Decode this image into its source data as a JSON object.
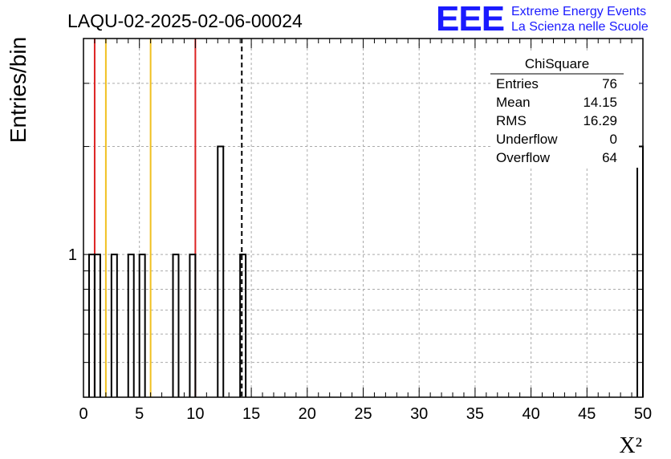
{
  "chart_data": {
    "type": "bar",
    "title": "LAQU-02-2025-02-06-00024",
    "xlabel": "X²",
    "ylabel": "Entries/bin",
    "xlim": [
      0,
      50
    ],
    "ylog": true,
    "ylim": [
      0.4,
      4
    ],
    "x_ticks": [
      "0",
      "5",
      "10",
      "15",
      "20",
      "25",
      "30",
      "35",
      "40",
      "45",
      "50"
    ],
    "y_tick_labels": [
      {
        "value": 1,
        "label": "1"
      }
    ],
    "bin_width": 0.5,
    "bins": [
      {
        "x0": 0.5,
        "count": 1
      },
      {
        "x0": 1.0,
        "count": 1
      },
      {
        "x0": 2.5,
        "count": 1
      },
      {
        "x0": 4.0,
        "count": 1
      },
      {
        "x0": 5.0,
        "count": 1
      },
      {
        "x0": 8.0,
        "count": 1
      },
      {
        "x0": 9.5,
        "count": 1
      },
      {
        "x0": 12.0,
        "count": 2
      },
      {
        "x0": 14.0,
        "count": 1
      },
      {
        "x0": 49.5,
        "count": 2
      }
    ],
    "vertical_lines": [
      {
        "x": 1.0,
        "color": "#dd2222",
        "style": "solid"
      },
      {
        "x": 2.0,
        "color": "#f0c020",
        "style": "solid"
      },
      {
        "x": 6.0,
        "color": "#f0c020",
        "style": "solid"
      },
      {
        "x": 10.0,
        "color": "#dd2222",
        "style": "solid"
      },
      {
        "x": 14.15,
        "color": "#000000",
        "style": "dashed"
      }
    ],
    "grid": true,
    "stats_box": {
      "name": "ChiSquare",
      "rows": [
        {
          "label": "Entries",
          "value": "76"
        },
        {
          "label": "Mean",
          "value": "14.15"
        },
        {
          "label": "RMS",
          "value": "16.29"
        },
        {
          "label": "Underflow",
          "value": "0"
        },
        {
          "label": "Overflow",
          "value": "64"
        }
      ]
    }
  },
  "logo": {
    "mark": "EEE",
    "line1": "Extreme Energy Events",
    "line2": "La Scienza nelle Scuole",
    "color": "#1a1aff"
  }
}
